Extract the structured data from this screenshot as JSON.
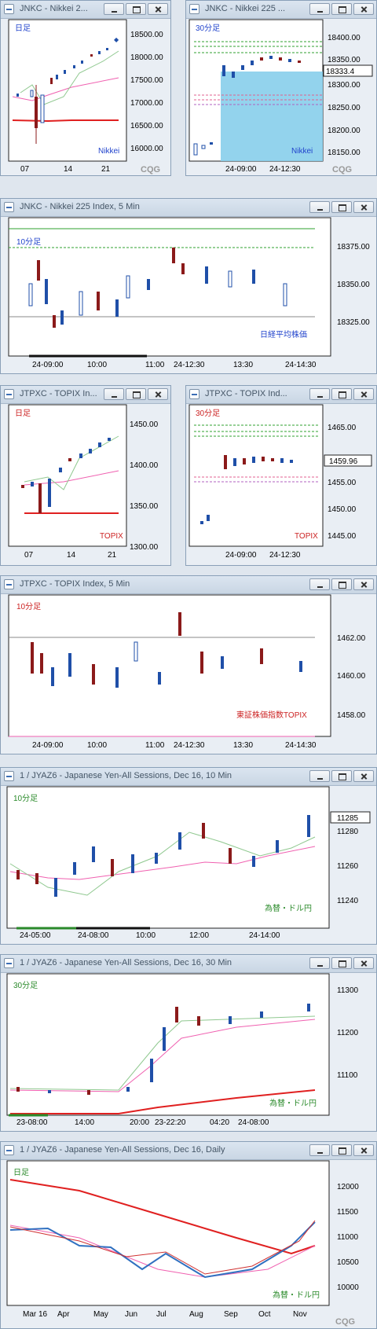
{
  "windows": [
    {
      "id": "w1",
      "title": "JNKC - Nikkei 2...",
      "period": "日足",
      "label": "Nikkei",
      "prices": [
        "18500.00",
        "18000.00",
        "17500.00",
        "17000.00",
        "16500.00",
        "16000.00"
      ],
      "times": [
        "07",
        "14",
        "21"
      ],
      "watermark": "CQG"
    },
    {
      "id": "w2",
      "title": "JNKC - Nikkei 225 ...",
      "period": "30分足",
      "label": "Nikkei",
      "prices": [
        "18400.00",
        "18350.00",
        "18300.00",
        "18250.00",
        "18200.00",
        "18150.00"
      ],
      "last": "18333.4",
      "times": [
        "24-09:00",
        "24-12:30"
      ],
      "watermark": "CQG"
    },
    {
      "id": "w3",
      "title": "JNKC - Nikkei 225 Index, 5 Min",
      "period": "10分足",
      "label": "日経平均株価",
      "prices": [
        "18375.00",
        "18350.00",
        "18325.00"
      ],
      "times": [
        "24-09:00",
        "10:00",
        "11:00",
        "24-12:30",
        "13:30",
        "24-14:30"
      ]
    },
    {
      "id": "w4",
      "title": "JTPXC - TOPIX In...",
      "period": "日足",
      "label": "TOPIX",
      "prices": [
        "1450.00",
        "1400.00",
        "1350.00",
        "1300.00"
      ],
      "times": [
        "07",
        "14",
        "21"
      ]
    },
    {
      "id": "w5",
      "title": "JTPXC - TOPIX Ind...",
      "period": "30分足",
      "label": "TOPIX",
      "prices": [
        "1465.00",
        "1460.00",
        "1455.00",
        "1450.00",
        "1445.00"
      ],
      "last": "1459.96",
      "times": [
        "24-09:00",
        "24-12:30"
      ]
    },
    {
      "id": "w6",
      "title": "JTPXC - TOPIX Index, 5 Min",
      "period": "10分足",
      "label": "東証株価指数TOPIX",
      "prices": [
        "1462.00",
        "1460.00",
        "1458.00"
      ],
      "times": [
        "24-09:00",
        "10:00",
        "11:00",
        "24-12:30",
        "13:30",
        "24-14:30"
      ]
    },
    {
      "id": "w7",
      "title": "1 / JYAZ6 - Japanese Yen-All Sessions, Dec 16, 10 Min",
      "period": "10分足",
      "label": "為替・ドル円",
      "prices": [
        "11280",
        "11260",
        "11240"
      ],
      "last": "11285",
      "times": [
        "24-05:00",
        "24-08:00",
        "10:00",
        "12:00",
        "24-14:00"
      ]
    },
    {
      "id": "w8",
      "title": "1 / JYAZ6 - Japanese Yen-All Sessions, Dec 16, 30 Min",
      "period": "30分足",
      "label": "為替・ドル円",
      "prices": [
        "11300",
        "11200",
        "11100"
      ],
      "times": [
        "23-08:00",
        "14:00",
        "20:00",
        "23-22:20",
        "04:20",
        "24-08:00"
      ]
    },
    {
      "id": "w9",
      "title": "1 / JYAZ6 - Japanese Yen-All Sessions, Dec 16, Daily",
      "period": "日足",
      "label": "為替・ドル円",
      "prices": [
        "12000",
        "11500",
        "11000",
        "10500",
        "10000"
      ],
      "times": [
        "Mar 16",
        "Apr",
        "May",
        "Jun",
        "Jul",
        "Aug",
        "Sep",
        "Oct",
        "Nov"
      ],
      "watermark": "CQG"
    }
  ],
  "colors": {
    "up": "#1f4fa8",
    "down": "#8b1a1a",
    "ma_red": "#e02020",
    "ma_pink": "#f060b0",
    "ma_green": "#6fb86f",
    "grid": "#cfcfcf",
    "fill": "#87ceeb"
  }
}
